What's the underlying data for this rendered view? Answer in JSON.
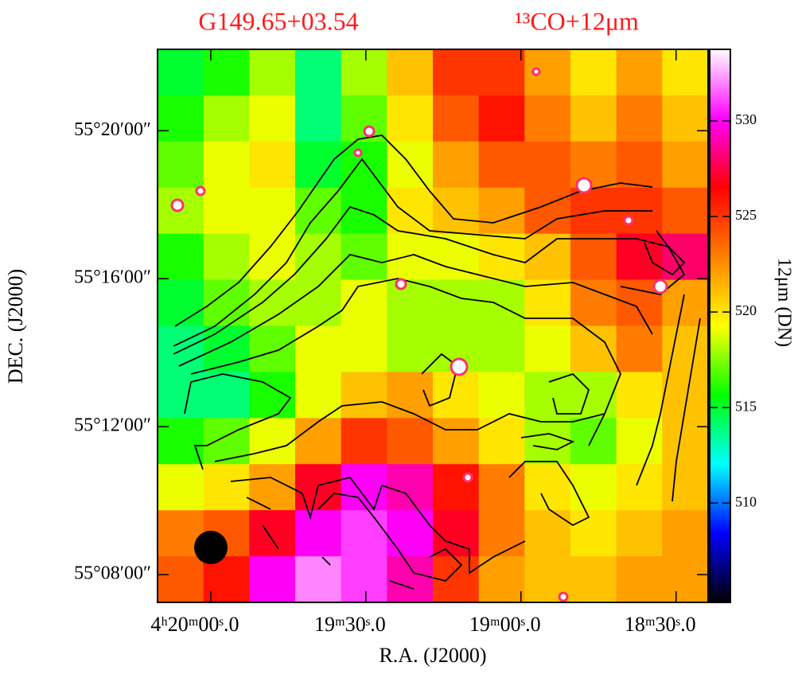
{
  "chart_data": {
    "type": "heatmap",
    "title": "G149.65+03.54",
    "subtitle": "¹³CO+12μm",
    "xlabel": "R.A. (J2000)",
    "ylabel": "DEC. (J2000)",
    "clabel": "12μm (DN)",
    "xlim": [
      15610.3,
      15503.8
    ],
    "xticks": [
      {
        "value": 15600,
        "label": "4ʰ20ᵐ00ˢ.0"
      },
      {
        "value": 15570,
        "label": "19ᵐ30ˢ.0"
      },
      {
        "value": 15540,
        "label": "19ᵐ00ˢ.0"
      },
      {
        "value": 15510,
        "label": "18ᵐ30ˢ.0"
      }
    ],
    "ylim": [
      3307.25,
      3322.2
    ],
    "yticks": [
      {
        "value": 3320,
        "label": "55°20′00″"
      },
      {
        "value": 3316,
        "label": "55°16′00″"
      },
      {
        "value": 3312,
        "label": "55°12′00″"
      },
      {
        "value": 3308,
        "label": "55°08′00″"
      }
    ],
    "clim": [
      504.8,
      533.75
    ],
    "cticks": [
      510,
      515,
      520,
      525,
      530
    ],
    "colormap": [
      "#000000",
      "#0000ff",
      "#00ffff",
      "#00ff00",
      "#ffff00",
      "#ff8000",
      "#ff0000",
      "#ff00ff",
      "#ffffff"
    ],
    "z": [
      [
        515,
        516,
        518,
        514,
        518,
        521,
        525,
        525,
        522,
        520,
        522,
        520
      ],
      [
        516,
        518,
        519,
        514,
        517,
        520,
        524,
        526,
        523,
        521,
        523,
        521
      ],
      [
        517,
        519,
        520,
        515,
        516,
        519,
        522,
        524,
        524,
        523,
        524,
        522
      ],
      [
        518,
        519,
        519,
        517,
        516,
        520,
        521,
        522,
        524,
        525,
        525,
        524
      ],
      [
        516,
        518,
        519,
        518,
        517,
        519,
        519,
        520,
        521,
        524,
        527,
        528
      ],
      [
        515,
        517,
        518,
        518,
        519,
        518,
        518,
        518,
        520,
        523,
        524,
        522
      ],
      [
        514,
        515,
        517,
        519,
        519,
        518,
        518,
        518,
        519,
        521,
        523,
        521
      ],
      [
        514,
        514,
        516,
        519,
        521,
        522,
        520,
        519,
        518,
        518,
        520,
        521
      ],
      [
        516,
        517,
        519,
        522,
        525,
        524,
        522,
        520,
        518,
        517,
        519,
        521
      ],
      [
        519,
        520,
        522,
        527,
        530,
        529,
        526,
        523,
        520,
        519,
        520,
        521
      ],
      [
        523,
        524,
        527,
        530,
        531,
        530,
        527,
        523,
        521,
        520,
        521,
        522
      ],
      [
        524,
        526,
        530,
        532,
        531,
        529,
        525,
        522,
        521,
        521,
        522,
        522
      ]
    ]
  }
}
